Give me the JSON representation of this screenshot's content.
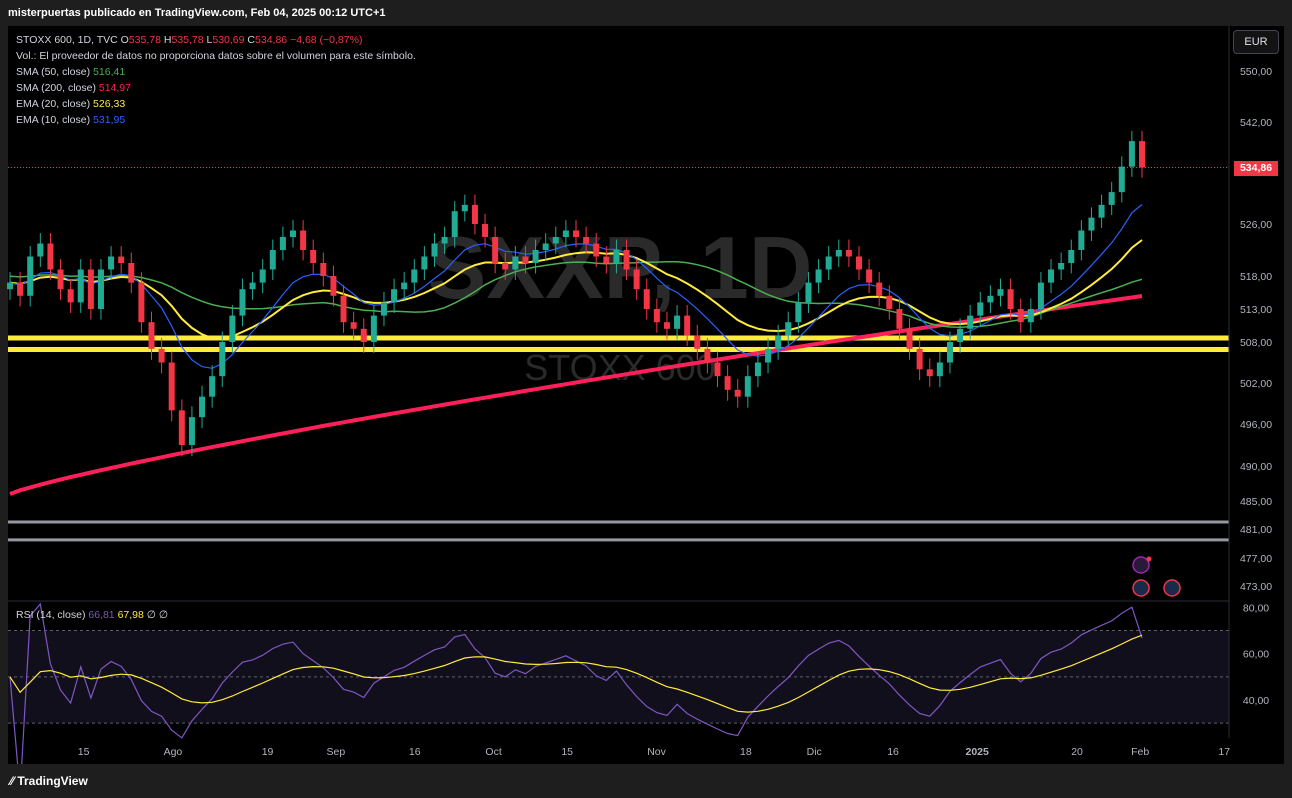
{
  "header": {
    "published": "misterpuertas publicado en TradingView.com, Feb 04, 2025 00:12 UTC+1"
  },
  "legend": {
    "symbol": "STOXX 600, 1D, TVC",
    "o_label": "O",
    "o": "535,78",
    "h_label": "H",
    "h": "535,78",
    "l_label": "L",
    "l": "530,69",
    "c_label": "C",
    "c": "534,86",
    "change": "−4,68 (−0,87%)",
    "vol": "Vol.: El proveedor de datos no proporciona datos sobre el volumen para este símbolo.",
    "sma50_label": "SMA (50, close)",
    "sma50": "516,41",
    "sma200_label": "SMA (200, close)",
    "sma200": "514,97",
    "ema20_label": "EMA (20, close)",
    "ema20": "526,33",
    "ema10_label": "EMA (10, close)",
    "ema10": "531,95"
  },
  "watermark": {
    "symbol": "SXXP, 1D",
    "name": "STOXX 600"
  },
  "currency": "EUR",
  "last_price": "534,86",
  "rsi_legend": {
    "label": "RSI (14, close)",
    "rsi": "66,81",
    "ma": "67,98",
    "n1": "∅",
    "n2": "∅"
  },
  "footer": {
    "brand": "TradingView"
  },
  "colors": {
    "sma50": "#4caf50",
    "sma200": "#ff1f5a",
    "ema20": "#ffeb3b",
    "ema10": "#2962ff",
    "up": "#22ab94",
    "down": "#f23645",
    "rsi": "#7e57c2",
    "rsi_ma": "#ffeb3b"
  },
  "chart_data": {
    "type": "candlestick",
    "symbol": "STOXX 600 (SXXP), 1D",
    "y_axis_labels": [
      "550,00",
      "542,00",
      "526,00",
      "518,00",
      "513,00",
      "508,00",
      "502,00",
      "496,00",
      "490,00",
      "485,00",
      "481,00",
      "477,00",
      "473,00"
    ],
    "y_axis_values": [
      550,
      542,
      526,
      518,
      513,
      508,
      502,
      496,
      490,
      485,
      481,
      477,
      473
    ],
    "x_axis_labels": [
      "15",
      "Ago",
      "19",
      "Sep",
      "16",
      "Oct",
      "15",
      "Nov",
      "18",
      "Dic",
      "16",
      "2025",
      "20",
      "Feb",
      "17"
    ],
    "x_axis_dates": [
      "2024-07-15",
      "2024-08-01",
      "2024-08-19",
      "2024-09-01",
      "2024-09-16",
      "2024-10-01",
      "2024-10-15",
      "2024-11-01",
      "2024-11-18",
      "2024-12-01",
      "2024-12-16",
      "2025-01-01",
      "2025-01-20",
      "2025-02-01",
      "2025-02-17"
    ],
    "closes": [
      517,
      515,
      521,
      523,
      519,
      516,
      514,
      519,
      513,
      519,
      521,
      520,
      517,
      511,
      507,
      505,
      498,
      493,
      497,
      500,
      503,
      508,
      512,
      516,
      517,
      519,
      522,
      524,
      525,
      522,
      520,
      518,
      515,
      511,
      510,
      508,
      512,
      514,
      516,
      517,
      519,
      521,
      523,
      524,
      528,
      529,
      526,
      524,
      520,
      519,
      521,
      520,
      522,
      523,
      524,
      525,
      524,
      523,
      521,
      520,
      522,
      519,
      516,
      513,
      511,
      510,
      512,
      509,
      507,
      505,
      503,
      501,
      500,
      503,
      505,
      507,
      509,
      511,
      514,
      517,
      519,
      521,
      522,
      521,
      519,
      517,
      515,
      513,
      510,
      507,
      504,
      503,
      505,
      508,
      510,
      512,
      514,
      515,
      516,
      513,
      511,
      513,
      517,
      519,
      520,
      522,
      525,
      527,
      529,
      531,
      535,
      539,
      534.86
    ],
    "horizontal_levels": [
      508.6,
      506.9,
      482,
      479.5
    ],
    "sma50": {
      "label": "SMA (50, close)",
      "last": 516.41
    },
    "sma200": {
      "label": "SMA (200, close)",
      "last": 514.97
    },
    "ema20": {
      "label": "EMA (20, close)",
      "last": 526.33
    },
    "ema10": {
      "label": "EMA (10, close)",
      "last": 531.95
    },
    "rsi": {
      "label": "RSI (14, close)",
      "last": 66.81,
      "ma_last": 67.98,
      "axis_labels": [
        "80,00",
        "60,00",
        "40,00"
      ],
      "axis_values": [
        80,
        60,
        40
      ],
      "bands": [
        70,
        50,
        30
      ]
    }
  }
}
